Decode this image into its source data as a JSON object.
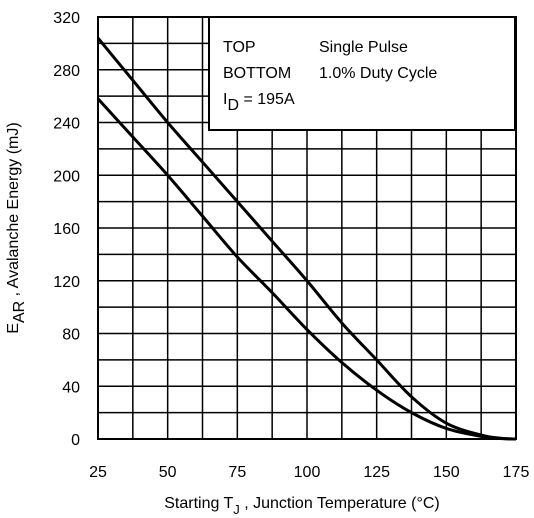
{
  "chart_data": {
    "type": "line",
    "xlabel": {
      "prefix": "Starting T",
      "sub": "J",
      "suffix": " , Junction Temperature (°C)"
    },
    "ylabel": {
      "prefix": "E",
      "sub": "AR",
      "suffix": " , Avalanche Energy (mJ)"
    },
    "xlim": [
      25,
      175
    ],
    "ylim": [
      0,
      320
    ],
    "x_ticks": [
      25,
      50,
      75,
      100,
      125,
      150,
      175
    ],
    "y_ticks": [
      0,
      40,
      80,
      120,
      160,
      200,
      240,
      280,
      320
    ],
    "x_ticks_text": [
      "25",
      "50",
      "75",
      "100",
      "125",
      "150",
      "175"
    ],
    "y_ticks_text": [
      "0",
      "40",
      "80",
      "120",
      "160",
      "200",
      "240",
      "280",
      "320"
    ],
    "grid": true,
    "legend": {
      "placement": "top-right",
      "rows": [
        {
          "key": "TOP",
          "value": "Single Pulse"
        },
        {
          "key": "BOTTOM",
          "value": "1.0% Duty Cycle"
        }
      ],
      "condition": {
        "prefix": "I",
        "sub": "D",
        "suffix": " = 195A"
      }
    },
    "series": [
      {
        "x": [
          25,
          37.5,
          50,
          62.5,
          75,
          87.5,
          100,
          112.5,
          125,
          137.5,
          150,
          162.5,
          170,
          175
        ],
        "y": [
          304,
          272,
          240,
          210,
          180,
          150,
          120,
          88,
          60,
          32,
          12,
          3,
          0.5,
          0
        ]
      },
      {
        "x": [
          25,
          37.5,
          50,
          62.5,
          75,
          87.5,
          100,
          112.5,
          125,
          137.5,
          150,
          162.5,
          170,
          175
        ],
        "y": [
          258,
          229,
          200,
          169,
          138,
          111,
          83,
          58,
          37,
          20,
          8,
          2,
          0.3,
          0
        ]
      }
    ]
  }
}
